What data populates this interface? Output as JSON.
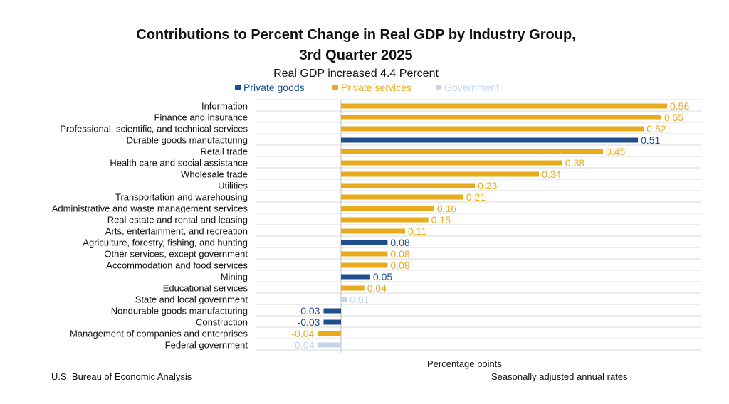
{
  "chart_data": {
    "type": "bar",
    "orientation": "horizontal",
    "title_line1": "Contributions to Percent Change in Real GDP by Industry Group,",
    "title_line2": "3rd Quarter 2025",
    "subtitle": "Real GDP increased 4.4 Percent",
    "xlabel": "Percentage points",
    "source": "U.S. Bureau of Economic Analysis",
    "note": "Seasonally adjusted annual rates",
    "xlim": [
      -0.05,
      0.65
    ],
    "legend": [
      {
        "key": "goods",
        "name": "Private goods",
        "color": "#1f4e8c"
      },
      {
        "key": "services",
        "name": "Private services",
        "color": "#e8ab1c"
      },
      {
        "key": "government",
        "name": "Government",
        "color": "#c6d6ea"
      }
    ],
    "bars": [
      {
        "label": "Information",
        "value": 0.56,
        "display": "0.56",
        "group": "services"
      },
      {
        "label": "Finance and insurance",
        "value": 0.55,
        "display": "0.55",
        "group": "services"
      },
      {
        "label": "Professional, scientific, and technical services",
        "value": 0.52,
        "display": "0.52",
        "group": "services"
      },
      {
        "label": "Durable goods manufacturing",
        "value": 0.51,
        "display": "0.51",
        "group": "goods"
      },
      {
        "label": "Retail trade",
        "value": 0.45,
        "display": "0.45",
        "group": "services"
      },
      {
        "label": "Health care and social assistance",
        "value": 0.38,
        "display": "0.38",
        "group": "services"
      },
      {
        "label": "Wholesale trade",
        "value": 0.34,
        "display": "0.34",
        "group": "services"
      },
      {
        "label": "Utilities",
        "value": 0.23,
        "display": "0.23",
        "group": "services"
      },
      {
        "label": "Transportation and warehousing",
        "value": 0.21,
        "display": "0.21",
        "group": "services"
      },
      {
        "label": "Administrative and waste management services",
        "value": 0.16,
        "display": "0.16",
        "group": "services"
      },
      {
        "label": "Real estate and rental and leasing",
        "value": 0.15,
        "display": "0.15",
        "group": "services"
      },
      {
        "label": "Arts, entertainment, and recreation",
        "value": 0.11,
        "display": "0.11",
        "group": "services"
      },
      {
        "label": "Agriculture, forestry, fishing, and hunting",
        "value": 0.08,
        "display": "0.08",
        "group": "goods"
      },
      {
        "label": "Other services, except government",
        "value": 0.08,
        "display": "0.08",
        "group": "services"
      },
      {
        "label": "Accommodation and food services",
        "value": 0.08,
        "display": "0.08",
        "group": "services"
      },
      {
        "label": "Mining",
        "value": 0.05,
        "display": "0.05",
        "group": "goods"
      },
      {
        "label": "Educational services",
        "value": 0.04,
        "display": "0.04",
        "group": "services"
      },
      {
        "label": "State and local government",
        "value": 0.01,
        "display": "0.01",
        "group": "government"
      },
      {
        "label": "Nondurable goods manufacturing",
        "value": -0.03,
        "display": "-0.03",
        "group": "goods"
      },
      {
        "label": "Construction",
        "value": -0.03,
        "display": "-0.03",
        "group": "goods"
      },
      {
        "label": "Management of companies and enterprises",
        "value": -0.04,
        "display": "-0.04",
        "group": "services"
      },
      {
        "label": "Federal government",
        "value": -0.04,
        "display": "-0.04",
        "group": "government"
      }
    ]
  }
}
